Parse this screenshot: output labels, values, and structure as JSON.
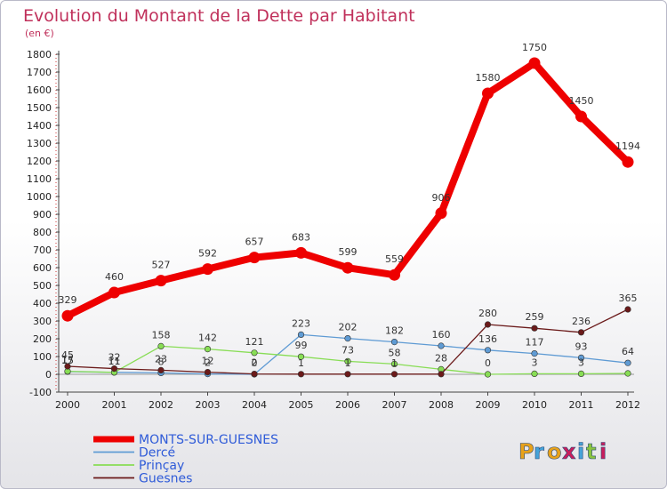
{
  "chart_data": {
    "type": "line",
    "title": "Evolution du Montant de la Dette par Habitant",
    "subtitle": "(en €)",
    "xlabel": "",
    "ylabel": "",
    "categories": [
      "2000",
      "2001",
      "2002",
      "2003",
      "2004",
      "2005",
      "2006",
      "2007",
      "2008",
      "2009",
      "2010",
      "2011",
      "2012"
    ],
    "ylim": [
      -100,
      1800
    ],
    "yticks": [
      -100,
      0,
      100,
      200,
      300,
      400,
      500,
      600,
      700,
      800,
      900,
      1000,
      1100,
      1200,
      1300,
      1400,
      1500,
      1600,
      1700,
      1800
    ],
    "grid": false,
    "legend_position": "bottom-left",
    "series": [
      {
        "name": "MONTS-SUR-GUESNES",
        "color": "#ee0000",
        "values": [
          329,
          460,
          527,
          592,
          657,
          683,
          599,
          559,
          906,
          1580,
          1750,
          1450,
          1194
        ],
        "labels": [
          "329",
          "460",
          "527",
          "592",
          "657",
          "683",
          "599",
          "559",
          "906",
          "1580",
          "1750",
          "1450",
          "1194"
        ]
      },
      {
        "name": "Dercé",
        "color": "#5f9bd4",
        "values": [
          15,
          11,
          8,
          2,
          0,
          223,
          202,
          182,
          160,
          136,
          117,
          93,
          64
        ],
        "labels": [
          "15",
          "11",
          "8",
          "2",
          "0",
          "223",
          "202",
          "182",
          "160",
          "136",
          "117",
          "93",
          "64"
        ]
      },
      {
        "name": "Prinçay",
        "color": "#88dd55",
        "values": [
          17,
          11,
          158,
          142,
          121,
          99,
          73,
          58,
          28,
          0,
          3,
          3,
          5
        ],
        "labels": [
          "17",
          "11",
          "158",
          "142",
          "121",
          "99",
          "73",
          "58",
          "28",
          "0",
          "3",
          "3",
          ""
        ]
      },
      {
        "name": "Guesnes",
        "color": "#6b1a1a",
        "values": [
          45,
          32,
          23,
          12,
          2,
          1,
          1,
          1,
          1,
          280,
          259,
          236,
          365
        ],
        "labels": [
          "45",
          "32",
          "23",
          "12",
          "2",
          "1",
          "1",
          "1",
          "",
          "280",
          "259",
          "236",
          "365"
        ]
      }
    ]
  },
  "brand": {
    "letters": [
      "P",
      "r",
      "o",
      "x",
      "i",
      "t",
      "i"
    ],
    "colors": [
      "#e8a21b",
      "#46a3d8",
      "#e8a21b",
      "#c81e5c",
      "#46a3d8",
      "#8ac43f",
      "#c81e5c"
    ]
  }
}
